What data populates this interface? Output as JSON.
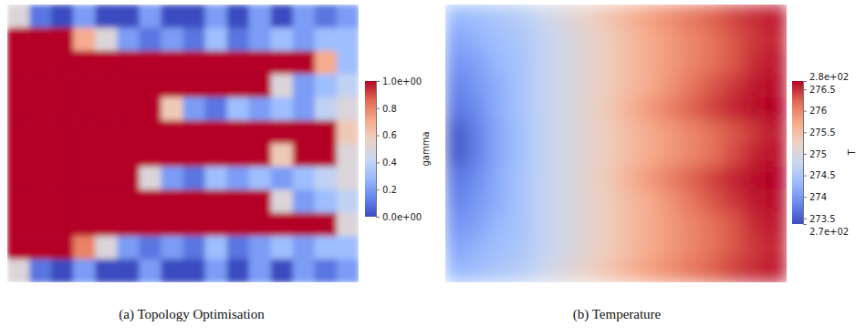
{
  "chart_data": [
    {
      "type": "heatmap",
      "title": "(a) Topology Optimisation",
      "tick_labels": false,
      "colorbar": {
        "label": "gamma",
        "range": [
          0,
          1
        ],
        "ticks": [
          {
            "value": 0,
            "label": "0.0e+00"
          },
          0.2,
          0.4,
          0.6,
          0.8,
          {
            "value": 1,
            "label": "1.0e+00"
          }
        ]
      },
      "cells": [
        [
          0.5,
          0.1,
          0,
          0.2,
          0,
          0,
          0.2,
          0,
          0,
          0.2,
          0,
          0.2,
          0,
          0.2,
          0.1,
          0.2
        ],
        [
          1,
          1,
          1,
          0.7,
          0.5,
          0.2,
          0.1,
          0.2,
          0.1,
          0.3,
          0.1,
          0.2,
          0.3,
          0.2,
          0.3,
          0.3
        ],
        [
          1,
          1,
          1,
          1,
          1,
          1,
          1,
          1,
          1,
          1,
          1,
          1,
          1,
          1,
          0.7,
          0.3
        ],
        [
          1,
          1,
          1,
          1,
          1,
          1,
          1,
          1,
          1,
          1,
          1,
          1,
          0.5,
          0.2,
          0.3,
          0.4
        ],
        [
          1,
          1,
          1,
          1,
          1,
          1,
          1,
          0.6,
          0.2,
          0.1,
          0.3,
          0.2,
          0.3,
          0.2,
          0.4,
          0.5
        ],
        [
          1,
          1,
          1,
          1,
          1,
          1,
          1,
          1,
          1,
          1,
          1,
          1,
          1,
          1,
          1,
          0.6
        ],
        [
          1,
          1,
          1,
          1,
          1,
          1,
          1,
          1,
          1,
          1,
          1,
          1,
          0.6,
          1,
          1,
          0.5
        ],
        [
          1,
          1,
          1,
          1,
          1,
          1,
          0.5,
          0.2,
          0.1,
          0.3,
          0.2,
          0.3,
          0.2,
          0.3,
          0.4,
          0.5
        ],
        [
          1,
          1,
          1,
          1,
          1,
          1,
          1,
          1,
          1,
          1,
          1,
          1,
          0.5,
          0.2,
          0.3,
          0.4
        ],
        [
          1,
          1,
          1,
          1,
          1,
          1,
          1,
          1,
          1,
          1,
          1,
          1,
          1,
          1,
          1,
          0.5
        ],
        [
          1,
          1,
          1,
          0.8,
          0.5,
          0.2,
          0.1,
          0.2,
          0.1,
          0.3,
          0.1,
          0.2,
          0.3,
          0.2,
          0.3,
          0.3
        ],
        [
          0.5,
          0.1,
          0,
          0.2,
          0,
          0,
          0.2,
          0,
          0,
          0.2,
          0,
          0.2,
          0,
          0.2,
          0.1,
          0.2
        ]
      ]
    },
    {
      "type": "heatmap",
      "title": "(b) Temperature",
      "tick_labels": false,
      "colorbar": {
        "label": "T",
        "range": [
          273.37,
          276.69
        ],
        "ticks": [
          {
            "value": 273.37,
            "label": "2.7e+02"
          },
          273.5,
          274,
          274.5,
          275,
          275.5,
          276,
          276.5,
          {
            "value": 276.69,
            "label": "2.8e+02"
          }
        ]
      },
      "cells": [
        [
          274.3,
          274.4,
          274.5,
          274.6,
          274.8,
          275.0,
          275.2,
          275.4,
          275.6,
          275.8,
          275.95,
          276.1,
          276.25,
          276.4,
          276.5,
          276.6
        ],
        [
          274.1,
          274.25,
          274.4,
          274.5,
          274.7,
          274.9,
          275.1,
          275.3,
          275.5,
          275.7,
          275.85,
          276.0,
          276.15,
          276.3,
          276.45,
          276.55
        ],
        [
          273.95,
          274.1,
          274.3,
          274.45,
          274.7,
          274.9,
          275.1,
          275.3,
          275.5,
          275.7,
          275.85,
          276.0,
          276.15,
          276.3,
          276.5,
          276.6
        ],
        [
          273.8,
          274.0,
          274.2,
          274.45,
          274.7,
          274.9,
          275.1,
          275.3,
          275.5,
          275.7,
          275.9,
          276.1,
          276.3,
          276.45,
          276.6,
          276.65
        ],
        [
          273.7,
          273.9,
          274.2,
          274.45,
          274.7,
          274.9,
          275.1,
          275.35,
          275.6,
          275.85,
          276.05,
          276.25,
          276.4,
          276.55,
          276.65,
          276.69
        ],
        [
          273.45,
          273.8,
          274.15,
          274.4,
          274.7,
          274.9,
          275.1,
          275.3,
          275.5,
          275.7,
          275.85,
          276.0,
          276.15,
          276.3,
          276.45,
          276.6
        ],
        [
          273.45,
          273.8,
          274.15,
          274.4,
          274.7,
          274.9,
          275.1,
          275.3,
          275.5,
          275.7,
          275.85,
          276.0,
          276.15,
          276.35,
          276.55,
          276.65
        ],
        [
          273.7,
          273.9,
          274.2,
          274.45,
          274.7,
          274.9,
          275.1,
          275.35,
          275.6,
          275.85,
          276.05,
          276.25,
          276.4,
          276.55,
          276.65,
          276.69
        ],
        [
          273.8,
          274.0,
          274.2,
          274.45,
          274.7,
          274.9,
          275.1,
          275.3,
          275.5,
          275.7,
          275.9,
          276.1,
          276.3,
          276.45,
          276.6,
          276.65
        ],
        [
          273.95,
          274.1,
          274.3,
          274.45,
          274.7,
          274.9,
          275.1,
          275.3,
          275.5,
          275.7,
          275.85,
          276.0,
          276.15,
          276.3,
          276.5,
          276.6
        ],
        [
          274.1,
          274.25,
          274.4,
          274.5,
          274.7,
          274.9,
          275.1,
          275.3,
          275.5,
          275.7,
          275.85,
          276.0,
          276.15,
          276.3,
          276.45,
          276.55
        ],
        [
          274.3,
          274.4,
          274.5,
          274.6,
          274.8,
          275.0,
          275.2,
          275.4,
          275.6,
          275.8,
          275.95,
          276.1,
          276.25,
          276.4,
          276.5,
          276.6
        ]
      ]
    }
  ]
}
